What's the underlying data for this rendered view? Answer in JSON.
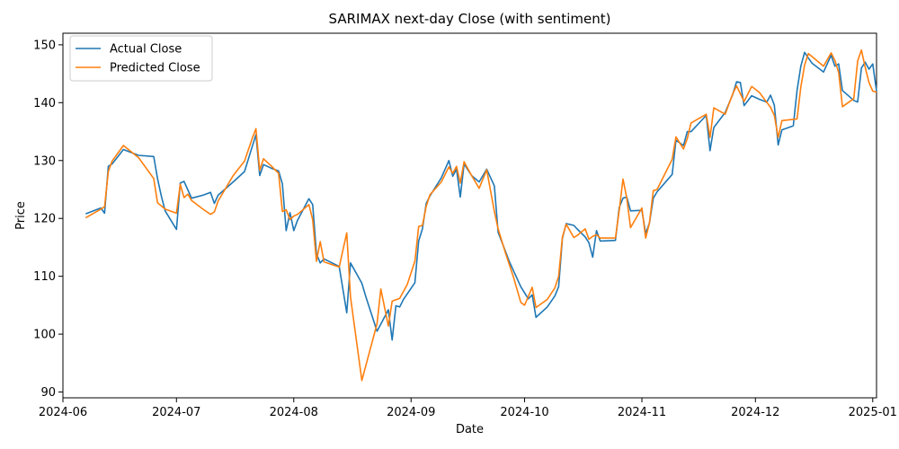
{
  "chart_data": {
    "type": "line",
    "title": "SARIMAX next-day Close (with sentiment)",
    "xlabel": "Date",
    "ylabel": "Price",
    "x_axis_type": "date",
    "xlim": [
      "2024-06-01",
      "2025-01-02"
    ],
    "ylim": [
      89,
      152
    ],
    "grid": false,
    "legend_position": "upper-left",
    "x_ticks": [
      "2024-06",
      "2024-07",
      "2024-08",
      "2024-09",
      "2024-10",
      "2024-11",
      "2024-12",
      "2025-01"
    ],
    "y_ticks": [
      90,
      100,
      110,
      120,
      130,
      140,
      150
    ],
    "series": [
      {
        "name": "Actual Close",
        "color": "#1f77b4",
        "points": [
          [
            "2024-06-07",
            120.8
          ],
          [
            "2024-06-11",
            121.8
          ],
          [
            "2024-06-12",
            120.9
          ],
          [
            "2024-06-13",
            129.0
          ],
          [
            "2024-06-14",
            129.4
          ],
          [
            "2024-06-17",
            131.9
          ],
          [
            "2024-06-21",
            130.9
          ],
          [
            "2024-06-25",
            130.7
          ],
          [
            "2024-06-26",
            126.9
          ],
          [
            "2024-06-27",
            123.9
          ],
          [
            "2024-06-28",
            121.3
          ],
          [
            "2024-07-01",
            118.1
          ],
          [
            "2024-07-02",
            126.1
          ],
          [
            "2024-07-03",
            126.4
          ],
          [
            "2024-07-05",
            123.5
          ],
          [
            "2024-07-08",
            124.0
          ],
          [
            "2024-07-10",
            124.5
          ],
          [
            "2024-07-11",
            122.6
          ],
          [
            "2024-07-12",
            124.0
          ],
          [
            "2024-07-16",
            126.3
          ],
          [
            "2024-07-19",
            128.1
          ],
          [
            "2024-07-22",
            134.5
          ],
          [
            "2024-07-23",
            127.4
          ],
          [
            "2024-07-24",
            129.3
          ],
          [
            "2024-07-26",
            128.7
          ],
          [
            "2024-07-28",
            128.2
          ],
          [
            "2024-07-29",
            126.0
          ],
          [
            "2024-07-30",
            117.9
          ],
          [
            "2024-07-31",
            121.0
          ],
          [
            "2024-08-01",
            117.9
          ],
          [
            "2024-08-02",
            119.7
          ],
          [
            "2024-08-05",
            123.4
          ],
          [
            "2024-08-06",
            122.4
          ],
          [
            "2024-08-07",
            113.9
          ],
          [
            "2024-08-08",
            112.3
          ],
          [
            "2024-08-09",
            113.0
          ],
          [
            "2024-08-13",
            111.7
          ],
          [
            "2024-08-15",
            103.7
          ],
          [
            "2024-08-16",
            112.3
          ],
          [
            "2024-08-19",
            108.8
          ],
          [
            "2024-08-20",
            106.6
          ],
          [
            "2024-08-23",
            100.5
          ],
          [
            "2024-08-26",
            104.2
          ],
          [
            "2024-08-27",
            99.0
          ],
          [
            "2024-08-28",
            104.9
          ],
          [
            "2024-08-29",
            104.7
          ],
          [
            "2024-08-30",
            106.0
          ],
          [
            "2024-09-02",
            108.9
          ],
          [
            "2024-09-03",
            116.1
          ],
          [
            "2024-09-04",
            118.2
          ],
          [
            "2024-09-05",
            122.6
          ],
          [
            "2024-09-06",
            123.9
          ],
          [
            "2024-09-09",
            127.0
          ],
          [
            "2024-09-11",
            130.0
          ],
          [
            "2024-09-12",
            127.3
          ],
          [
            "2024-09-13",
            128.5
          ],
          [
            "2024-09-14",
            123.7
          ],
          [
            "2024-09-15",
            129.4
          ],
          [
            "2024-09-17",
            127.4
          ],
          [
            "2024-09-19",
            126.3
          ],
          [
            "2024-09-21",
            128.5
          ],
          [
            "2024-09-23",
            125.6
          ],
          [
            "2024-09-24",
            117.6
          ],
          [
            "2024-09-25",
            115.9
          ],
          [
            "2024-09-27",
            112.5
          ],
          [
            "2024-09-30",
            108.2
          ],
          [
            "2024-10-02",
            106.1
          ],
          [
            "2024-10-03",
            106.8
          ],
          [
            "2024-10-04",
            102.9
          ],
          [
            "2024-10-07",
            104.7
          ],
          [
            "2024-10-09",
            106.6
          ],
          [
            "2024-10-10",
            108.2
          ],
          [
            "2024-10-11",
            116.6
          ],
          [
            "2024-10-12",
            119.1
          ],
          [
            "2024-10-14",
            118.8
          ],
          [
            "2024-10-15",
            118.1
          ],
          [
            "2024-10-17",
            116.8
          ],
          [
            "2024-10-18",
            115.8
          ],
          [
            "2024-10-19",
            113.3
          ],
          [
            "2024-10-20",
            117.9
          ],
          [
            "2024-10-21",
            116.1
          ],
          [
            "2024-10-25",
            116.2
          ],
          [
            "2024-10-26",
            121.9
          ],
          [
            "2024-10-27",
            123.5
          ],
          [
            "2024-10-28",
            123.7
          ],
          [
            "2024-10-29",
            121.3
          ],
          [
            "2024-11-01",
            121.4
          ],
          [
            "2024-11-02",
            117.4
          ],
          [
            "2024-11-03",
            119.2
          ],
          [
            "2024-11-04",
            123.5
          ],
          [
            "2024-11-05",
            124.6
          ],
          [
            "2024-11-09",
            127.6
          ],
          [
            "2024-11-10",
            133.5
          ],
          [
            "2024-11-12",
            132.6
          ],
          [
            "2024-11-13",
            135.0
          ],
          [
            "2024-11-14",
            135.0
          ],
          [
            "2024-11-18",
            137.8
          ],
          [
            "2024-11-19",
            131.7
          ],
          [
            "2024-11-20",
            135.7
          ],
          [
            "2024-11-23",
            138.3
          ],
          [
            "2024-11-25",
            141.4
          ],
          [
            "2024-11-26",
            143.6
          ],
          [
            "2024-11-27",
            143.5
          ],
          [
            "2024-11-28",
            139.5
          ],
          [
            "2024-11-30",
            141.2
          ],
          [
            "2024-12-02",
            140.6
          ],
          [
            "2024-12-04",
            140.1
          ],
          [
            "2024-12-05",
            141.3
          ],
          [
            "2024-12-06",
            139.6
          ],
          [
            "2024-12-07",
            132.7
          ],
          [
            "2024-12-08",
            135.3
          ],
          [
            "2024-12-11",
            136.0
          ],
          [
            "2024-12-12",
            142.1
          ],
          [
            "2024-12-13",
            146.3
          ],
          [
            "2024-12-14",
            148.7
          ],
          [
            "2024-12-15",
            147.7
          ],
          [
            "2024-12-16",
            146.8
          ],
          [
            "2024-12-19",
            145.3
          ],
          [
            "2024-12-21",
            148.2
          ],
          [
            "2024-12-22",
            146.3
          ],
          [
            "2024-12-23",
            146.7
          ],
          [
            "2024-12-24",
            142.1
          ],
          [
            "2024-12-27",
            140.4
          ],
          [
            "2024-12-28",
            140.1
          ],
          [
            "2024-12-29",
            146.0
          ],
          [
            "2024-12-30",
            147.0
          ],
          [
            "2024-12-31",
            145.8
          ],
          [
            "2025-01-01",
            146.7
          ],
          [
            "2025-01-02",
            142.0
          ]
        ]
      },
      {
        "name": "Predicted Close",
        "color": "#ff7f0e",
        "points": [
          [
            "2024-06-07",
            120.1
          ],
          [
            "2024-06-11",
            121.6
          ],
          [
            "2024-06-12",
            122.0
          ],
          [
            "2024-06-13",
            128.1
          ],
          [
            "2024-06-14",
            129.9
          ],
          [
            "2024-06-17",
            132.6
          ],
          [
            "2024-06-21",
            130.5
          ],
          [
            "2024-06-25",
            126.9
          ],
          [
            "2024-06-26",
            122.7
          ],
          [
            "2024-06-28",
            121.6
          ],
          [
            "2024-07-01",
            120.9
          ],
          [
            "2024-07-02",
            125.9
          ],
          [
            "2024-07-03",
            123.6
          ],
          [
            "2024-07-04",
            124.2
          ],
          [
            "2024-07-05",
            123.1
          ],
          [
            "2024-07-08",
            121.6
          ],
          [
            "2024-07-10",
            120.7
          ],
          [
            "2024-07-11",
            121.1
          ],
          [
            "2024-07-12",
            123.0
          ],
          [
            "2024-07-16",
            127.4
          ],
          [
            "2024-07-19",
            129.9
          ],
          [
            "2024-07-21",
            133.8
          ],
          [
            "2024-07-22",
            135.5
          ],
          [
            "2024-07-23",
            128.3
          ],
          [
            "2024-07-24",
            130.3
          ],
          [
            "2024-07-26",
            129.1
          ],
          [
            "2024-07-28",
            127.8
          ],
          [
            "2024-07-29",
            121.2
          ],
          [
            "2024-07-30",
            121.5
          ],
          [
            "2024-07-31",
            119.8
          ],
          [
            "2024-08-01",
            120.4
          ],
          [
            "2024-08-02",
            120.7
          ],
          [
            "2024-08-05",
            122.4
          ],
          [
            "2024-08-06",
            119.8
          ],
          [
            "2024-08-07",
            112.6
          ],
          [
            "2024-08-08",
            116.0
          ],
          [
            "2024-08-09",
            112.5
          ],
          [
            "2024-08-13",
            111.6
          ],
          [
            "2024-08-15",
            117.5
          ],
          [
            "2024-08-16",
            106.4
          ],
          [
            "2024-08-19",
            92.0
          ],
          [
            "2024-08-23",
            101.8
          ],
          [
            "2024-08-24",
            107.8
          ],
          [
            "2024-08-26",
            101.4
          ],
          [
            "2024-08-27",
            105.7
          ],
          [
            "2024-08-29",
            106.2
          ],
          [
            "2024-08-31",
            108.6
          ],
          [
            "2024-09-02",
            112.6
          ],
          [
            "2024-09-03",
            118.6
          ],
          [
            "2024-09-04",
            118.8
          ],
          [
            "2024-09-05",
            122.1
          ],
          [
            "2024-09-06",
            124.1
          ],
          [
            "2024-09-09",
            126.3
          ],
          [
            "2024-09-11",
            128.9
          ],
          [
            "2024-09-12",
            127.8
          ],
          [
            "2024-09-13",
            129.0
          ],
          [
            "2024-09-14",
            126.1
          ],
          [
            "2024-09-15",
            129.8
          ],
          [
            "2024-09-17",
            127.4
          ],
          [
            "2024-09-19",
            125.2
          ],
          [
            "2024-09-21",
            128.4
          ],
          [
            "2024-09-23",
            121.2
          ],
          [
            "2024-09-24",
            118.2
          ],
          [
            "2024-09-26",
            113.9
          ],
          [
            "2024-09-28",
            110.0
          ],
          [
            "2024-09-30",
            105.5
          ],
          [
            "2024-10-01",
            105.0
          ],
          [
            "2024-10-03",
            108.1
          ],
          [
            "2024-10-04",
            104.6
          ],
          [
            "2024-10-07",
            106.0
          ],
          [
            "2024-10-09",
            108.0
          ],
          [
            "2024-10-10",
            110.0
          ],
          [
            "2024-10-11",
            116.8
          ],
          [
            "2024-10-12",
            119.0
          ],
          [
            "2024-10-14",
            116.7
          ],
          [
            "2024-10-15",
            117.1
          ],
          [
            "2024-10-17",
            118.2
          ],
          [
            "2024-10-18",
            116.4
          ],
          [
            "2024-10-19",
            116.9
          ],
          [
            "2024-10-20",
            117.2
          ],
          [
            "2024-10-21",
            116.6
          ],
          [
            "2024-10-25",
            116.6
          ],
          [
            "2024-10-26",
            121.4
          ],
          [
            "2024-10-27",
            126.8
          ],
          [
            "2024-10-28",
            123.5
          ],
          [
            "2024-10-29",
            118.4
          ],
          [
            "2024-11-01",
            121.8
          ],
          [
            "2024-11-02",
            116.6
          ],
          [
            "2024-11-03",
            119.2
          ],
          [
            "2024-11-04",
            124.8
          ],
          [
            "2024-11-05",
            125.0
          ],
          [
            "2024-11-09",
            130.2
          ],
          [
            "2024-11-10",
            134.1
          ],
          [
            "2024-11-12",
            132.0
          ],
          [
            "2024-11-13",
            133.8
          ],
          [
            "2024-11-14",
            136.5
          ],
          [
            "2024-11-18",
            138.0
          ],
          [
            "2024-11-19",
            134.0
          ],
          [
            "2024-11-20",
            139.1
          ],
          [
            "2024-11-23",
            138.0
          ],
          [
            "2024-11-25",
            141.5
          ],
          [
            "2024-11-26",
            142.9
          ],
          [
            "2024-11-28",
            140.2
          ],
          [
            "2024-11-30",
            142.8
          ],
          [
            "2024-12-02",
            141.8
          ],
          [
            "2024-12-05",
            139.2
          ],
          [
            "2024-12-06",
            137.8
          ],
          [
            "2024-12-07",
            134.0
          ],
          [
            "2024-12-08",
            136.9
          ],
          [
            "2024-12-12",
            137.2
          ],
          [
            "2024-12-13",
            142.7
          ],
          [
            "2024-12-14",
            146.5
          ],
          [
            "2024-12-15",
            148.5
          ],
          [
            "2024-12-19",
            146.3
          ],
          [
            "2024-12-21",
            148.6
          ],
          [
            "2024-12-22",
            147.3
          ],
          [
            "2024-12-23",
            145.2
          ],
          [
            "2024-12-24",
            139.3
          ],
          [
            "2024-12-27",
            140.7
          ],
          [
            "2024-12-28",
            147.2
          ],
          [
            "2024-12-29",
            149.1
          ],
          [
            "2024-12-30",
            146.1
          ],
          [
            "2024-12-31",
            143.5
          ],
          [
            "2025-01-01",
            142.0
          ],
          [
            "2025-01-02",
            141.8
          ]
        ]
      }
    ]
  }
}
